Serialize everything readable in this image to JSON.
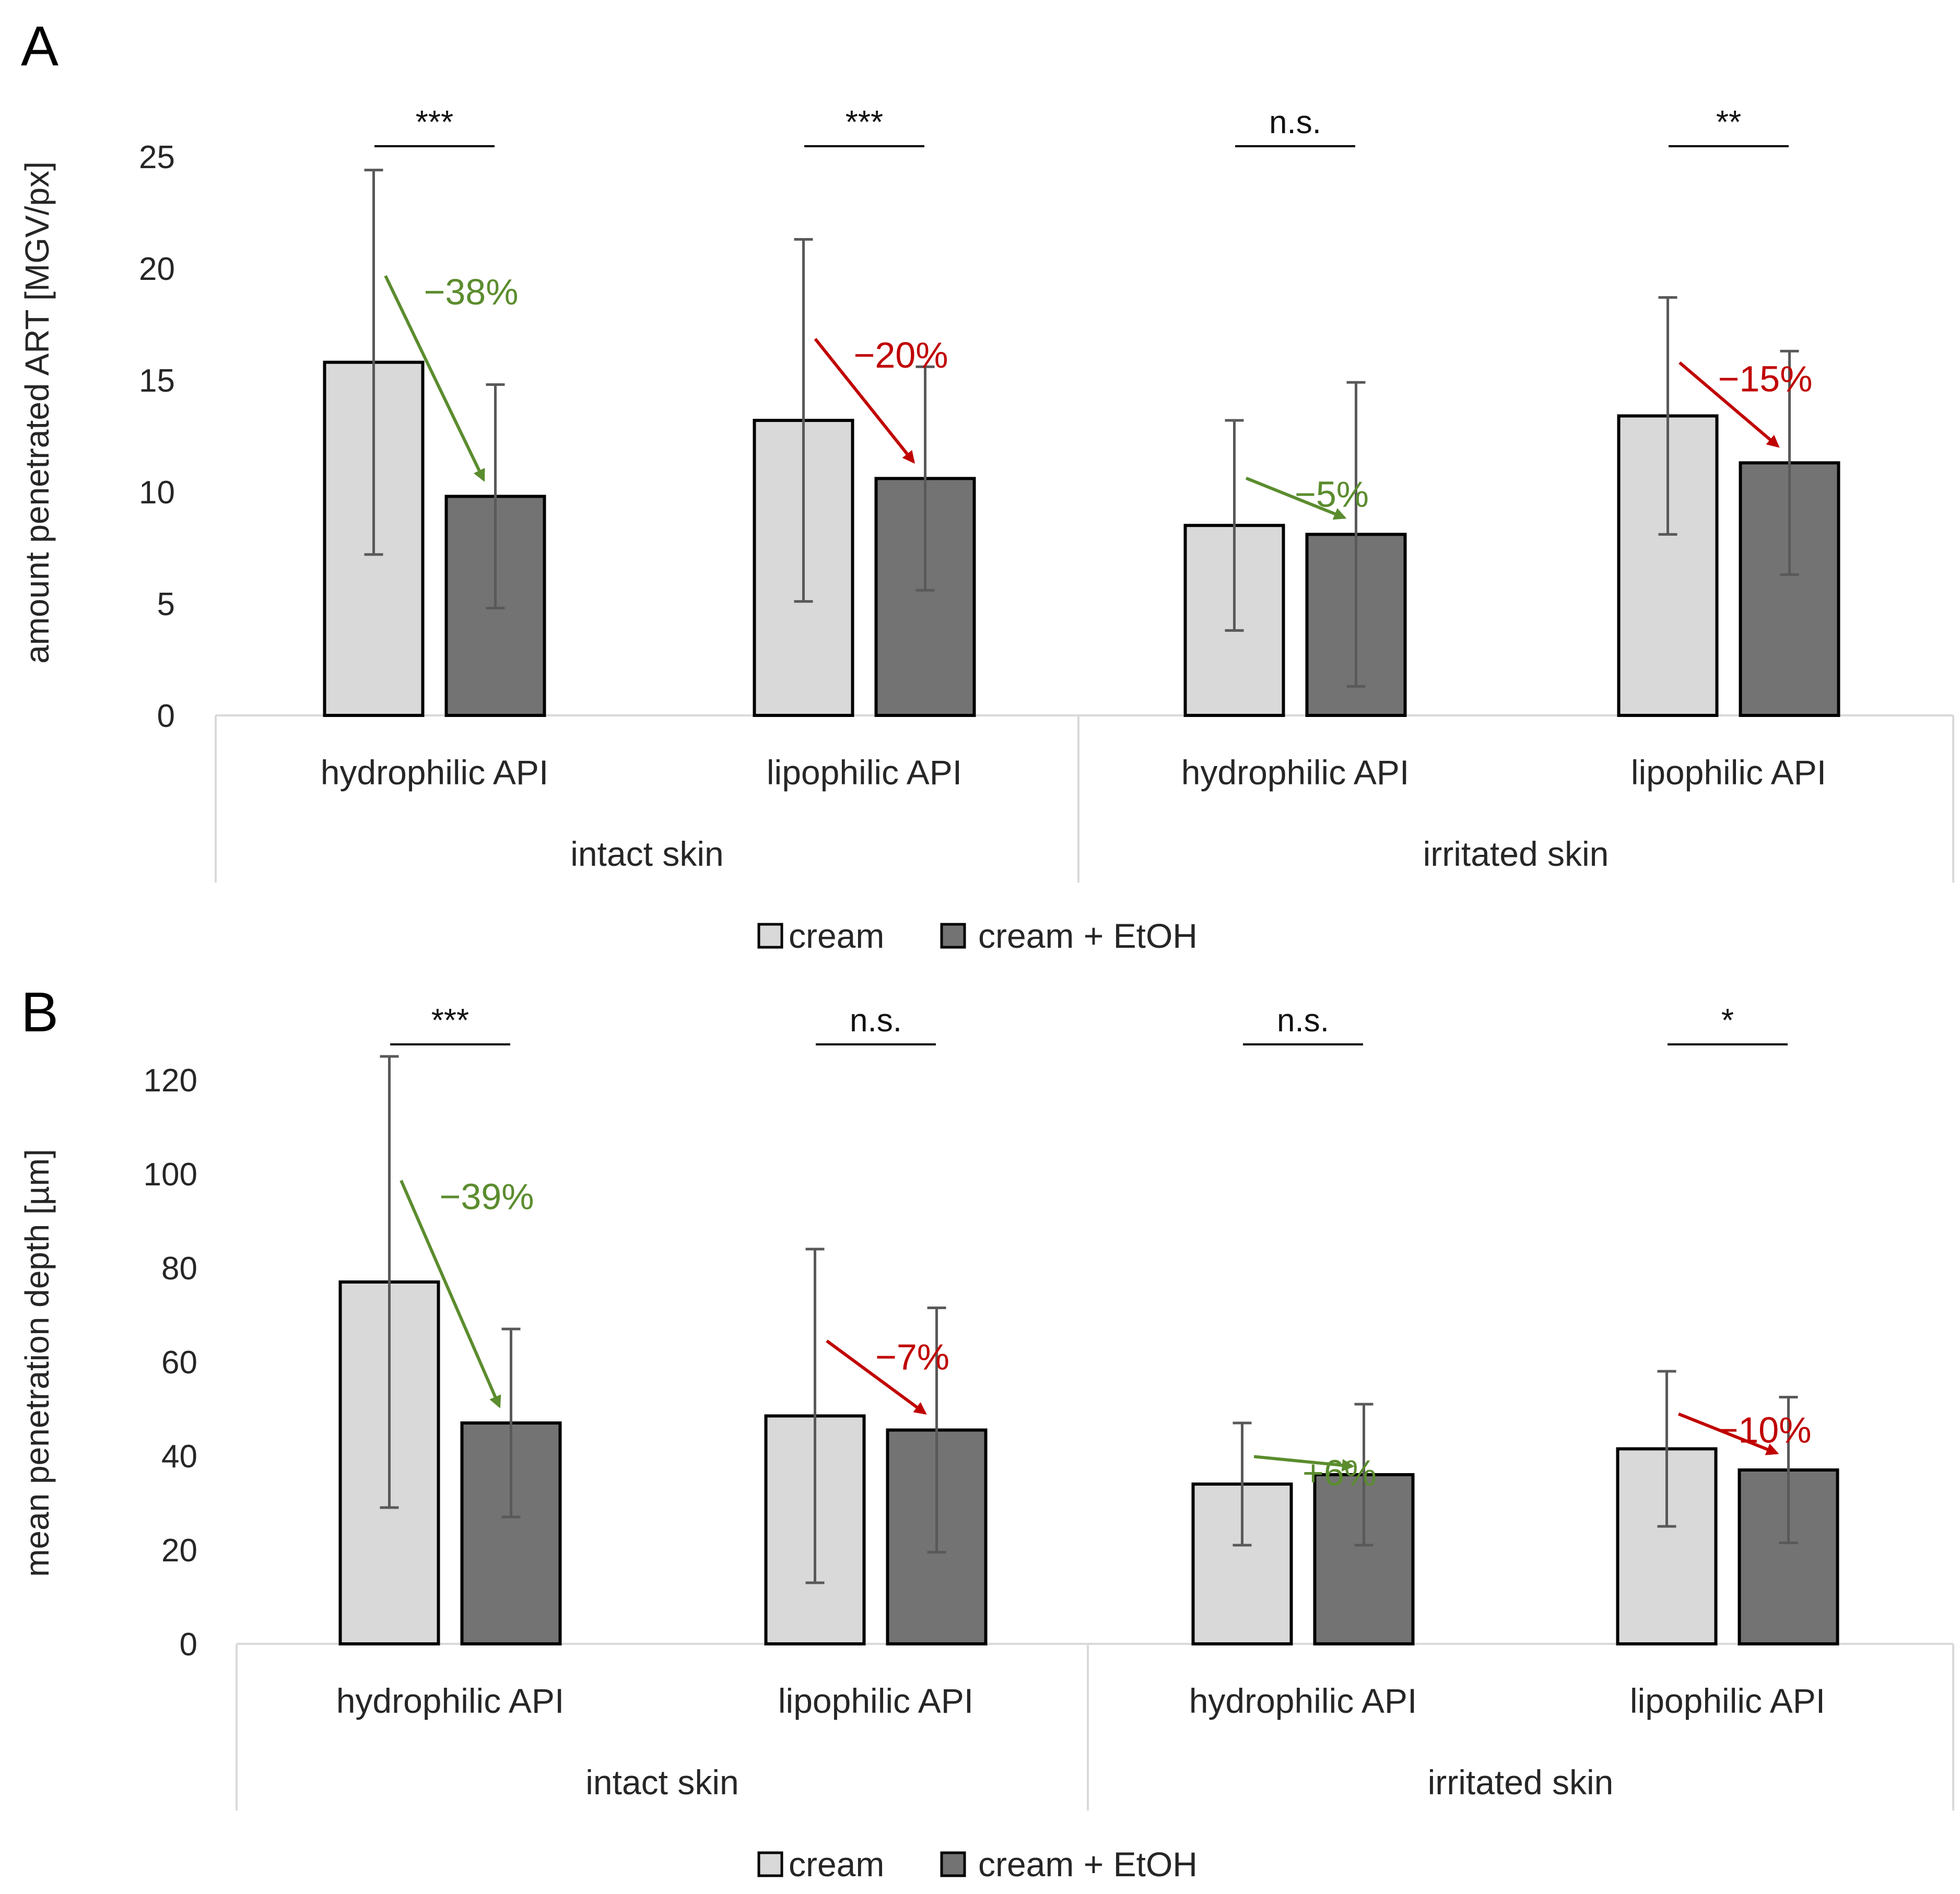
{
  "colors": {
    "cream": "#d9d9d9",
    "cream_etoh": "#737373",
    "bar_edge": "#000000",
    "error_bar": "#595959",
    "axis": "#d9d9d9",
    "decrease_green": "#5b8c2e",
    "decrease_red": "#c00000"
  },
  "chart_data": [
    {
      "panel": "A",
      "type": "bar",
      "ylabel": "amount penetrated ART [MGV/px]",
      "ylim": [
        0,
        25
      ],
      "yticks": [
        "0",
        "5",
        "10",
        "15",
        "20",
        "25"
      ],
      "groups": [
        {
          "label": "intact skin",
          "categories": [
            "hydrophilic API",
            "lipophilic API"
          ]
        },
        {
          "label": "irritated skin",
          "categories": [
            "hydrophilic API",
            "lipophilic API"
          ]
        }
      ],
      "categories": [
        "hydrophilic API",
        "lipophilic API",
        "hydrophilic API",
        "lipophilic API"
      ],
      "series": [
        {
          "name": "cream",
          "values": [
            15.8,
            13.2,
            8.5,
            13.4
          ],
          "error": [
            8.6,
            8.1,
            4.7,
            5.3
          ]
        },
        {
          "name": "cream + EtOH",
          "values": [
            9.8,
            10.6,
            8.1,
            11.3
          ],
          "error": [
            5.0,
            5.0,
            6.8,
            5.0
          ]
        }
      ],
      "significance": [
        "***",
        "***",
        "n.s.",
        "**"
      ],
      "changes": [
        {
          "text": "−38%",
          "color": "green"
        },
        {
          "text": "−20%",
          "color": "red"
        },
        {
          "text": "−5%",
          "color": "green"
        },
        {
          "text": "−15%",
          "color": "red"
        }
      ],
      "legend": [
        "cream",
        "cream + EtOH"
      ]
    },
    {
      "panel": "B",
      "type": "bar",
      "ylabel": "mean penetration depth [µm]",
      "ylim": [
        0,
        120
      ],
      "yticks": [
        "0",
        "20",
        "40",
        "60",
        "80",
        "100",
        "120"
      ],
      "groups": [
        {
          "label": "intact skin",
          "categories": [
            "hydrophilic API",
            "lipophilic API"
          ]
        },
        {
          "label": "irritated skin",
          "categories": [
            "hydrophilic API",
            "lipophilic API"
          ]
        }
      ],
      "categories": [
        "hydrophilic API",
        "lipophilic API",
        "hydrophilic API",
        "lipophilic API"
      ],
      "series": [
        {
          "name": "cream",
          "values": [
            77,
            48.5,
            34,
            41.5
          ],
          "error": [
            48,
            35.5,
            13,
            16.5
          ]
        },
        {
          "name": "cream + EtOH",
          "values": [
            47,
            45.5,
            36,
            37
          ],
          "error": [
            20,
            26,
            15,
            15.5
          ]
        }
      ],
      "significance": [
        "***",
        "n.s.",
        "n.s.",
        "*"
      ],
      "changes": [
        {
          "text": "−39%",
          "color": "green"
        },
        {
          "text": "−7%",
          "color": "red"
        },
        {
          "text": "+6%",
          "color": "green"
        },
        {
          "text": "−10%",
          "color": "red"
        }
      ],
      "legend": [
        "cream",
        "cream + EtOH"
      ]
    }
  ]
}
